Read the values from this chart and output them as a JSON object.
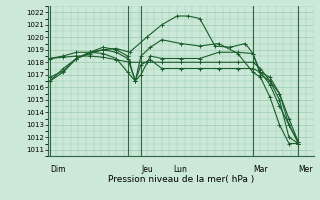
{
  "title": "Pression niveau de la mer( hPa )",
  "ylabel_vals": [
    1011,
    1012,
    1013,
    1014,
    1015,
    1016,
    1017,
    1018,
    1019,
    1020,
    1021,
    1022
  ],
  "ylim": [
    1010.5,
    1022.5
  ],
  "xlim": [
    0,
    7.0
  ],
  "bg_color": "#cce8d8",
  "grid_color": "#99ccb0",
  "line_color": "#1a5c2a",
  "vline_color": "#336644",
  "xtick_positions": [
    0.05,
    2.1,
    2.45,
    3.3,
    5.4,
    6.6
  ],
  "xtick_labels": [
    "Dim",
    "",
    "Jeu",
    "Lun",
    "Mar",
    "Mer"
  ],
  "vlines_x": [
    0.05,
    2.1,
    2.45,
    5.4,
    6.6
  ],
  "lines": [
    {
      "x": [
        0.05,
        0.4,
        0.75,
        1.1,
        1.45,
        1.8,
        2.15,
        2.6,
        3.0,
        3.4,
        3.7,
        4.0,
        4.4,
        4.8,
        5.2,
        5.4,
        5.6,
        5.85,
        6.1,
        6.35,
        6.6
      ],
      "y": [
        1016.8,
        1017.3,
        1018.3,
        1018.7,
        1019.0,
        1019.1,
        1018.8,
        1020.0,
        1021.0,
        1021.7,
        1021.7,
        1021.5,
        1019.3,
        1019.2,
        1019.5,
        1018.7,
        1017.2,
        1016.2,
        1014.5,
        1013.0,
        1011.5
      ],
      "marker": "+"
    },
    {
      "x": [
        0.05,
        0.4,
        0.75,
        1.1,
        1.45,
        1.8,
        2.15,
        2.6,
        3.0,
        3.5,
        4.0,
        4.5,
        5.0,
        5.4,
        5.6,
        5.85,
        6.1,
        6.35,
        6.6
      ],
      "y": [
        1018.3,
        1018.4,
        1018.5,
        1018.5,
        1018.4,
        1018.2,
        1018.0,
        1018.0,
        1018.0,
        1018.0,
        1018.0,
        1018.0,
        1018.0,
        1018.0,
        1017.5,
        1016.5,
        1015.5,
        1013.5,
        1011.6
      ],
      "marker": "+"
    },
    {
      "x": [
        0.05,
        0.4,
        0.75,
        1.1,
        1.45,
        1.8,
        2.1,
        2.3,
        2.45,
        2.7,
        3.0,
        3.5,
        4.0,
        4.5,
        5.0,
        5.4,
        5.6,
        5.85,
        6.1,
        6.35,
        6.6
      ],
      "y": [
        1018.3,
        1018.5,
        1018.8,
        1018.8,
        1018.7,
        1018.3,
        1017.2,
        1016.5,
        1017.8,
        1018.2,
        1017.5,
        1017.5,
        1017.5,
        1017.5,
        1017.5,
        1017.5,
        1017.2,
        1016.8,
        1015.5,
        1013.0,
        1011.6
      ],
      "marker": "+"
    },
    {
      "x": [
        0.05,
        0.4,
        0.75,
        1.1,
        1.45,
        1.8,
        2.1,
        2.3,
        2.45,
        2.7,
        3.0,
        3.5,
        4.0,
        4.5,
        5.0,
        5.4,
        5.6,
        5.85,
        6.1,
        6.35,
        6.6
      ],
      "y": [
        1016.5,
        1017.2,
        1018.3,
        1018.8,
        1019.2,
        1019.0,
        1018.5,
        1016.5,
        1017.0,
        1018.5,
        1018.3,
        1018.3,
        1018.3,
        1018.8,
        1018.8,
        1018.7,
        1017.0,
        1016.5,
        1015.0,
        1012.0,
        1011.5
      ],
      "marker": "+"
    },
    {
      "x": [
        0.05,
        0.4,
        0.75,
        1.1,
        1.45,
        1.8,
        2.1,
        2.3,
        2.45,
        2.7,
        3.0,
        3.5,
        4.0,
        4.5,
        5.0,
        5.4,
        5.6,
        5.85,
        6.1,
        6.35,
        6.6
      ],
      "y": [
        1016.5,
        1017.5,
        1018.3,
        1018.8,
        1019.0,
        1018.8,
        1018.3,
        1016.5,
        1018.5,
        1019.2,
        1019.8,
        1019.5,
        1019.3,
        1019.5,
        1018.7,
        1017.2,
        1016.8,
        1015.2,
        1013.0,
        1011.5,
        1011.5
      ],
      "marker": "+"
    }
  ]
}
